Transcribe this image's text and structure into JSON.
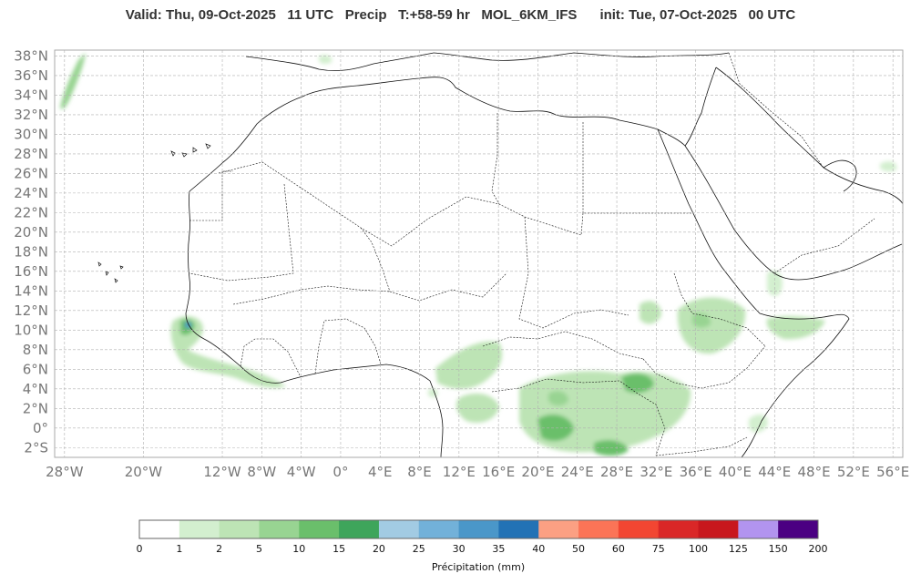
{
  "title": {
    "valid": "Valid: Thu, 09-Oct-2025",
    "valid_hour": "11 UTC",
    "variable": "Precip",
    "lead": "T:+58-59 hr",
    "model": "MOL_6KM_IFS",
    "init": "init: Tue, 07-Oct-2025",
    "init_hour": "00 UTC"
  },
  "map": {
    "lat_labels": [
      "38°N",
      "36°N",
      "34°N",
      "32°N",
      "30°N",
      "28°N",
      "26°N",
      "24°N",
      "22°N",
      "20°N",
      "18°N",
      "16°N",
      "14°N",
      "12°N",
      "10°N",
      "8°N",
      "6°N",
      "4°N",
      "2°N",
      "0°",
      "2°S"
    ],
    "lon_labels": [
      "28°W",
      "20°W",
      "12°W",
      "8°W",
      "4°W",
      "0°",
      "4°E",
      "8°E",
      "12°E",
      "16°E",
      "20°E",
      "24°E",
      "28°E",
      "32°E",
      "36°E",
      "40°E",
      "44°E",
      "48°E",
      "52°E",
      "56°E"
    ]
  },
  "colorbar": {
    "label": "Précipitation (mm)",
    "ticks": [
      "0",
      "1",
      "2",
      "5",
      "10",
      "15",
      "20",
      "25",
      "30",
      "35",
      "40",
      "50",
      "60",
      "75",
      "100",
      "125",
      "150",
      "200"
    ],
    "colors": [
      "#ffffff",
      "#d3efcf",
      "#bde4b5",
      "#98d492",
      "#6abf6b",
      "#3ea55b",
      "#a2cbe3",
      "#72b1d9",
      "#4a97c9",
      "#2272b5",
      "#fba083",
      "#fb7457",
      "#f24632",
      "#da2727",
      "#c8171d",
      "#b294ef",
      "#4b0082"
    ]
  }
}
